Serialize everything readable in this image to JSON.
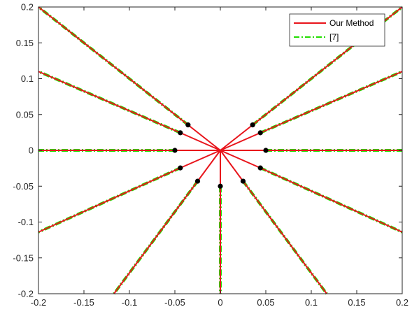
{
  "chart_data": {
    "type": "line",
    "title": "",
    "xlabel": "",
    "ylabel": "",
    "xlim": [
      -0.2,
      0.2
    ],
    "ylim": [
      -0.2,
      0.2
    ],
    "xticks": [
      -0.2,
      -0.15,
      -0.1,
      -0.05,
      0,
      0.05,
      0.1,
      0.15,
      0.2
    ],
    "yticks": [
      -0.2,
      -0.15,
      -0.1,
      -0.05,
      0,
      0.05,
      0.1,
      0.15,
      0.2
    ],
    "xtick_labels": [
      "-0.2",
      "-0.15",
      "-0.1",
      "-0.05",
      "0",
      "0.05",
      "0.1",
      "0.15",
      "0.2"
    ],
    "ytick_labels": [
      "-0.2",
      "-0.15",
      "-0.1",
      "-0.05",
      "0",
      "0.05",
      "0.1",
      "0.15",
      "0.2"
    ],
    "grid": false,
    "legend": {
      "position": "top-right",
      "entries": [
        "Our Method",
        "[7]"
      ]
    },
    "colors": {
      "our_method": "#e8141b",
      "ref7": "#22dd00",
      "points": "#000000"
    },
    "origin": [
      0,
      0
    ],
    "series": [
      {
        "name": "Our Method",
        "style": "solid",
        "segments": [
          [
            [
              0,
              0
            ],
            [
              -0.0355,
              0.0355
            ]
          ],
          [
            [
              0,
              0
            ],
            [
              -0.044,
              0.0245
            ]
          ],
          [
            [
              0,
              0
            ],
            [
              -0.05,
              0
            ]
          ],
          [
            [
              0,
              0
            ],
            [
              -0.044,
              -0.0245
            ]
          ],
          [
            [
              0,
              0
            ],
            [
              -0.025,
              -0.043
            ]
          ],
          [
            [
              0,
              0
            ],
            [
              0,
              -0.05
            ]
          ],
          [
            [
              0,
              0
            ],
            [
              0.025,
              -0.043
            ]
          ],
          [
            [
              0,
              0
            ],
            [
              0.044,
              -0.0245
            ]
          ],
          [
            [
              0,
              0
            ],
            [
              0.05,
              0
            ]
          ],
          [
            [
              0,
              0
            ],
            [
              0.044,
              0.0245
            ]
          ],
          [
            [
              0,
              0
            ],
            [
              0.0355,
              0.0355
            ]
          ],
          [
            [
              -0.0355,
              0.0355
            ],
            [
              -0.2,
              0.2
            ]
          ],
          [
            [
              -0.044,
              0.0245
            ],
            [
              -0.2,
              0.11
            ]
          ],
          [
            [
              -0.05,
              0
            ],
            [
              -0.2,
              0
            ]
          ],
          [
            [
              -0.044,
              -0.0245
            ],
            [
              -0.2,
              -0.114
            ]
          ],
          [
            [
              -0.025,
              -0.043
            ],
            [
              -0.117,
              -0.2
            ]
          ],
          [
            [
              0,
              -0.05
            ],
            [
              0,
              -0.2
            ]
          ],
          [
            [
              0.025,
              -0.043
            ],
            [
              0.117,
              -0.2
            ]
          ],
          [
            [
              0.044,
              -0.0245
            ],
            [
              0.2,
              -0.114
            ]
          ],
          [
            [
              0.05,
              0
            ],
            [
              0.2,
              0
            ]
          ],
          [
            [
              0.044,
              0.0245
            ],
            [
              0.2,
              0.11
            ]
          ],
          [
            [
              0.0355,
              0.0355
            ],
            [
              0.2,
              0.2
            ]
          ]
        ]
      },
      {
        "name": "[7]",
        "style": "dash-dot",
        "segments": [
          [
            [
              -0.0355,
              0.0355
            ],
            [
              -0.2,
              0.2
            ]
          ],
          [
            [
              -0.044,
              0.0245
            ],
            [
              -0.2,
              0.11
            ]
          ],
          [
            [
              -0.05,
              0
            ],
            [
              -0.2,
              0
            ]
          ],
          [
            [
              -0.044,
              -0.0245
            ],
            [
              -0.2,
              -0.114
            ]
          ],
          [
            [
              -0.025,
              -0.043
            ],
            [
              -0.117,
              -0.2
            ]
          ],
          [
            [
              0,
              -0.05
            ],
            [
              0,
              -0.2
            ]
          ],
          [
            [
              0.025,
              -0.043
            ],
            [
              0.117,
              -0.2
            ]
          ],
          [
            [
              0.044,
              -0.0245
            ],
            [
              0.2,
              -0.114
            ]
          ],
          [
            [
              0.05,
              0
            ],
            [
              0.2,
              0
            ]
          ],
          [
            [
              0.044,
              0.0245
            ],
            [
              0.2,
              0.11
            ]
          ],
          [
            [
              0.0355,
              0.0355
            ],
            [
              0.2,
              0.2
            ]
          ]
        ]
      }
    ],
    "points": [
      [
        -0.0355,
        0.0355
      ],
      [
        -0.044,
        0.0245
      ],
      [
        -0.05,
        0
      ],
      [
        -0.044,
        -0.0245
      ],
      [
        -0.025,
        -0.043
      ],
      [
        0,
        -0.05
      ],
      [
        0.025,
        -0.043
      ],
      [
        0.044,
        -0.0245
      ],
      [
        0.05,
        0
      ],
      [
        0.044,
        0.0245
      ],
      [
        0.0355,
        0.0355
      ]
    ]
  }
}
